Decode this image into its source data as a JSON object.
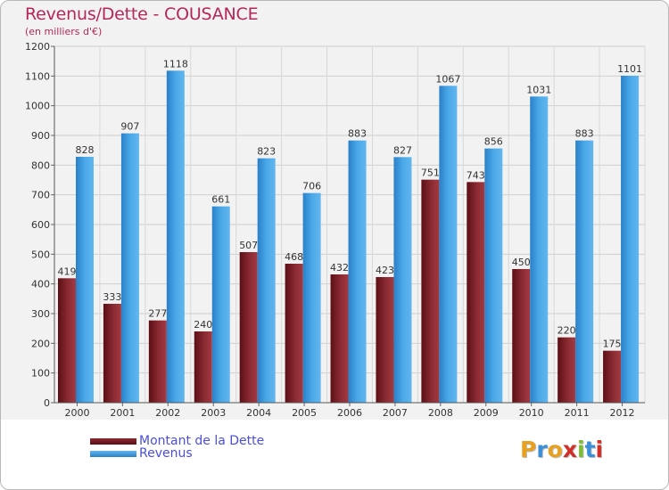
{
  "title": "Revenus/Dette - COUSANCE",
  "subtitle": "(en milliers d'€)",
  "logo_text": "Proxiti",
  "colors": {
    "title": "#b5275a",
    "debt": "#7a1a22",
    "revenue": "#3d9ee0",
    "legend_text": "#4a4de0"
  },
  "chart_data": {
    "type": "bar",
    "title": "Revenus/Dette - COUSANCE",
    "subtitle": "(en milliers d'€)",
    "categories": [
      "2000",
      "2001",
      "2002",
      "2003",
      "2004",
      "2005",
      "2006",
      "2007",
      "2008",
      "2009",
      "2010",
      "2011",
      "2012"
    ],
    "series": [
      {
        "name": "Montant de la Dette",
        "values": [
          419,
          333,
          277,
          240,
          507,
          468,
          432,
          423,
          751,
          743,
          450,
          220,
          175
        ]
      },
      {
        "name": "Revenus",
        "values": [
          828,
          907,
          1118,
          661,
          823,
          706,
          883,
          827,
          1067,
          856,
          1031,
          883,
          1101
        ]
      }
    ],
    "ylim": [
      0,
      1200
    ],
    "yticks": [
      0,
      100,
      200,
      300,
      400,
      500,
      600,
      700,
      800,
      900,
      1000,
      1100,
      1200
    ],
    "grid": true,
    "legend_position": "bottom-left"
  }
}
